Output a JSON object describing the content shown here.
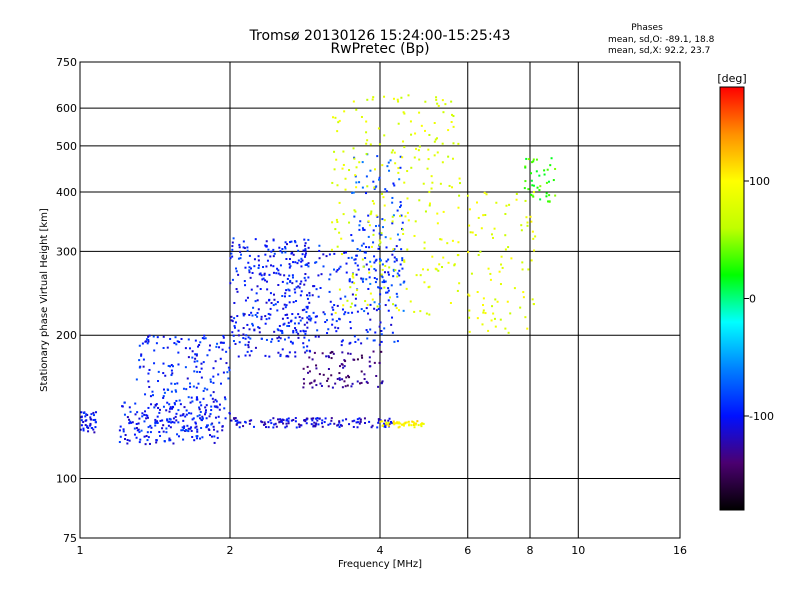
{
  "chart_data": {
    "type": "scatter",
    "title": "Tromsø 20130126 15:24:00-15:25:43",
    "subtitle": "RwPretec (Bp)",
    "xlabel": "Frequency [MHz]",
    "ylabel": "Stationary phase Virtual Height [km]",
    "x_scale": "log",
    "y_scale": "log",
    "xlim": [
      1,
      16
    ],
    "ylim": [
      75,
      750
    ],
    "x_ticks": [
      1,
      2,
      4,
      6,
      8,
      10,
      16
    ],
    "x_tick_labels": [
      "1",
      "2",
      "4",
      "6",
      "8",
      "10",
      "16"
    ],
    "y_ticks": [
      75,
      100,
      200,
      300,
      400,
      500,
      600,
      750
    ],
    "y_tick_labels": [
      "75",
      "100",
      "200",
      "300",
      "400",
      "500",
      "600",
      "750"
    ],
    "grid": true,
    "phase_stats": {
      "heading": "Phases",
      "line_o": "mean, sd,O: -89.1, 18.8",
      "line_x": "mean, sd,X:  92.2, 23.7"
    },
    "colorbar": {
      "label": "[deg]",
      "range": [
        -180,
        180
      ],
      "ticks": [
        100,
        0,
        -100
      ],
      "tick_labels": [
        "100",
        "0",
        "-100"
      ],
      "colors": [
        "#000000",
        "#4b0070",
        "#0010ff",
        "#0080ff",
        "#00ffff",
        "#00ff00",
        "#c0ff00",
        "#ffff00",
        "#ff9000",
        "#ff0000"
      ]
    },
    "series": [
      {
        "trace_type": "ordinary (O) trace",
        "traces": [
          {
            "x": [
              1.0,
              1.08
            ],
            "y": [
              125,
              138
            ],
            "phase": -105,
            "n": 40
          },
          {
            "x": [
              1.2,
              1.9
            ],
            "y": [
              118,
              145
            ],
            "phase": -100,
            "n": 160
          },
          {
            "x": [
              1.3,
              2.0
            ],
            "y": [
              125,
              200
            ],
            "phase": -95,
            "n": 220
          },
          {
            "x": [
              2.0,
              4.3
            ],
            "y": [
              128,
              134
            ],
            "phase": -110,
            "n": 140
          },
          {
            "x": [
              2.0,
              2.9
            ],
            "y": [
              180,
              320
            ],
            "phase": -98,
            "n": 280
          },
          {
            "x": [
              2.8,
              4.1
            ],
            "y": [
              155,
              185
            ],
            "phase": -135,
            "n": 90
          },
          {
            "x": [
              2.5,
              4.4
            ],
            "y": [
              190,
              310
            ],
            "phase": -95,
            "n": 220
          },
          {
            "x": [
              3.5,
              4.5
            ],
            "y": [
              220,
              480
            ],
            "phase": -80,
            "n": 120
          }
        ]
      },
      {
        "trace_type": "extraordinary (X) trace",
        "traces": [
          {
            "x": [
              4.0,
              4.9
            ],
            "y": [
              128,
              132
            ],
            "phase": 100,
            "n": 50
          },
          {
            "x": [
              3.2,
              5.8
            ],
            "y": [
              220,
              640
            ],
            "phase": 80,
            "n": 240
          },
          {
            "x": [
              6.0,
              8.2
            ],
            "y": [
              200,
              400
            ],
            "phase": 85,
            "n": 90
          },
          {
            "x": [
              7.8,
              9.0
            ],
            "y": [
              380,
              480
            ],
            "phase": 30,
            "n": 40
          }
        ]
      }
    ]
  }
}
